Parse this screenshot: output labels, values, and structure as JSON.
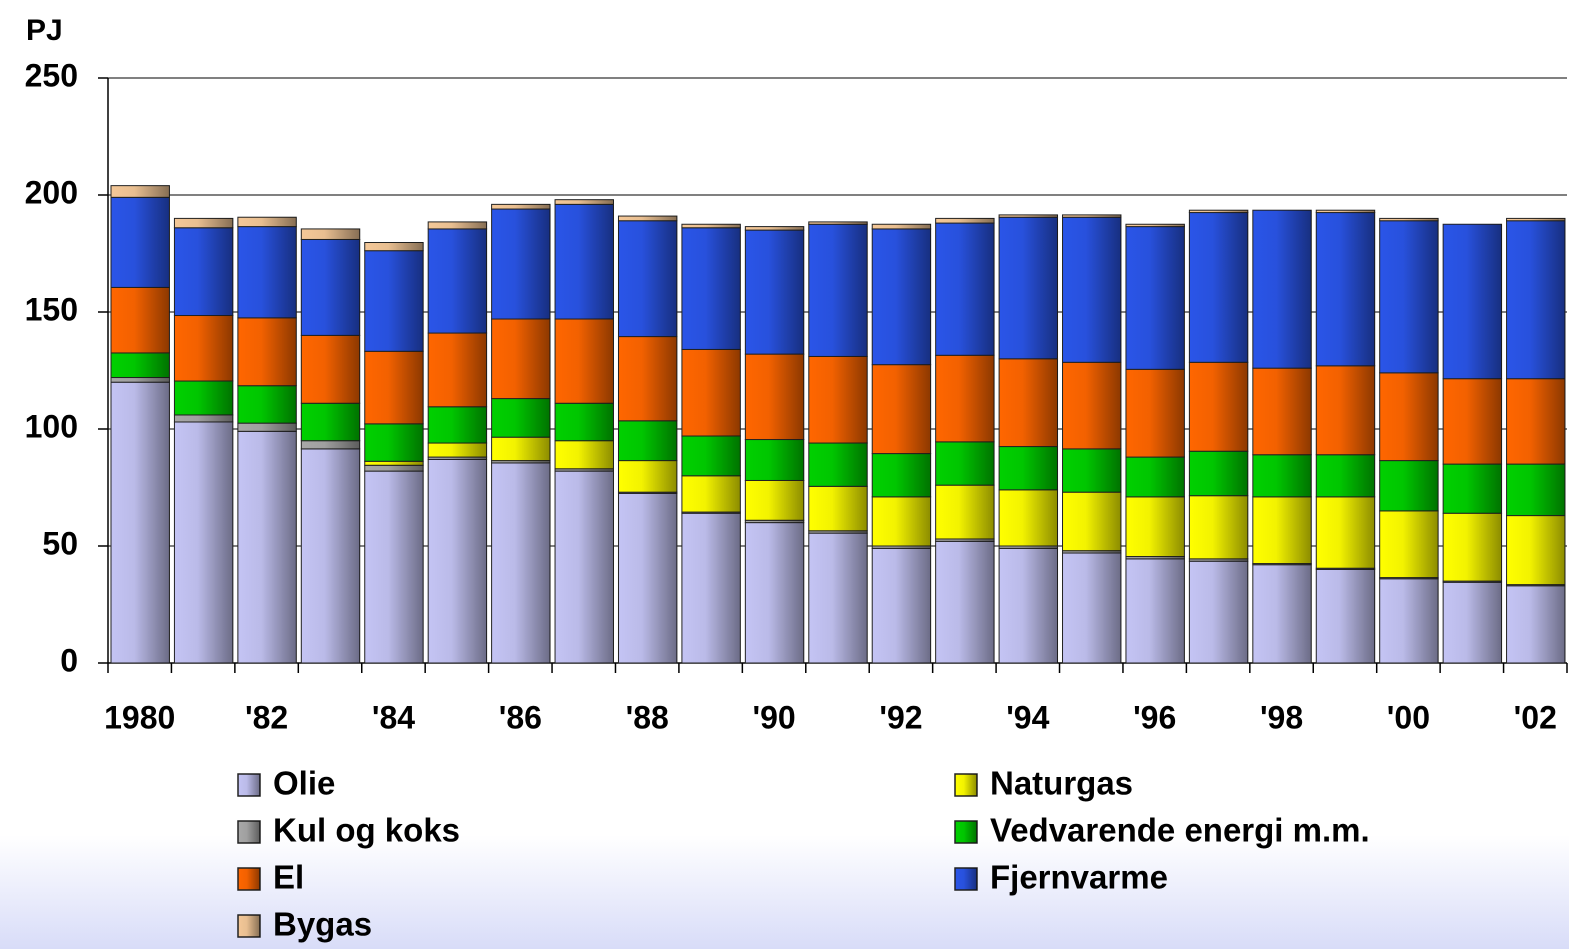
{
  "chart_data": {
    "type": "stacked_bar",
    "y_label": "PJ",
    "categories": [
      "1980",
      null,
      "'82",
      null,
      "'84",
      null,
      "'86",
      null,
      "'88",
      null,
      "'90",
      null,
      "'92",
      null,
      "'94",
      null,
      "'96",
      null,
      "'98",
      null,
      "'00",
      null,
      "'02"
    ],
    "ylim": [
      0,
      250
    ],
    "yticks": [
      0,
      50,
      100,
      150,
      200,
      250
    ],
    "grid": true,
    "series": [
      {
        "name": "Olie",
        "color": "#c4c4f4",
        "values": [
          120,
          103,
          99,
          91.5,
          82,
          87,
          85.5,
          82,
          72.5,
          64,
          60,
          55.5,
          49,
          52,
          49,
          47,
          44.5,
          43.5,
          42,
          40,
          36,
          34.5,
          33
        ]
      },
      {
        "name": "Kul og koks",
        "color": "#a8a8a8",
        "values": [
          2,
          3,
          3.5,
          3.5,
          2.5,
          1,
          1,
          1,
          0.5,
          0.5,
          1,
          1,
          1,
          1,
          1,
          1,
          1,
          1,
          0.5,
          0.5,
          0.5,
          0.5,
          0.5
        ]
      },
      {
        "name": "Naturgas",
        "color": "#ffff00",
        "values": [
          0,
          0,
          0,
          0,
          1.7,
          6,
          10,
          12,
          13.5,
          15.5,
          17,
          19,
          21,
          23,
          24,
          25,
          25.5,
          27,
          28.5,
          30.5,
          28.5,
          29,
          29.5
        ]
      },
      {
        "name": "Vedvarende energi m.m.",
        "color": "#00d000",
        "values": [
          10.5,
          14.5,
          16,
          16,
          16,
          15.5,
          16.5,
          16,
          17,
          17,
          17.5,
          18.5,
          18.5,
          18.5,
          18.5,
          18.5,
          17,
          19,
          18,
          18,
          21.5,
          21,
          22
        ]
      },
      {
        "name": "El",
        "color": "#ff6600",
        "values": [
          28,
          28,
          29,
          29,
          31,
          31.5,
          34,
          36,
          36,
          37,
          36.5,
          37,
          38,
          37,
          37.5,
          37,
          37.5,
          38,
          37,
          38,
          37.5,
          36.5,
          36.5
        ]
      },
      {
        "name": "Fjernvarme",
        "color": "#2a55e8",
        "values": [
          38.5,
          37.5,
          39,
          41,
          43,
          44.5,
          47,
          49,
          49.5,
          52,
          53,
          56.5,
          58,
          56.5,
          60.5,
          62,
          61,
          64,
          67.5,
          65.5,
          65,
          66,
          67.5
        ]
      },
      {
        "name": "Bygas",
        "color": "#f4c898",
        "values": [
          5,
          4,
          4,
          4.5,
          3.5,
          3,
          2,
          2,
          2,
          1.5,
          1.5,
          1,
          2,
          2,
          1,
          1,
          1,
          1,
          0,
          1,
          1,
          0,
          1
        ]
      }
    ]
  }
}
